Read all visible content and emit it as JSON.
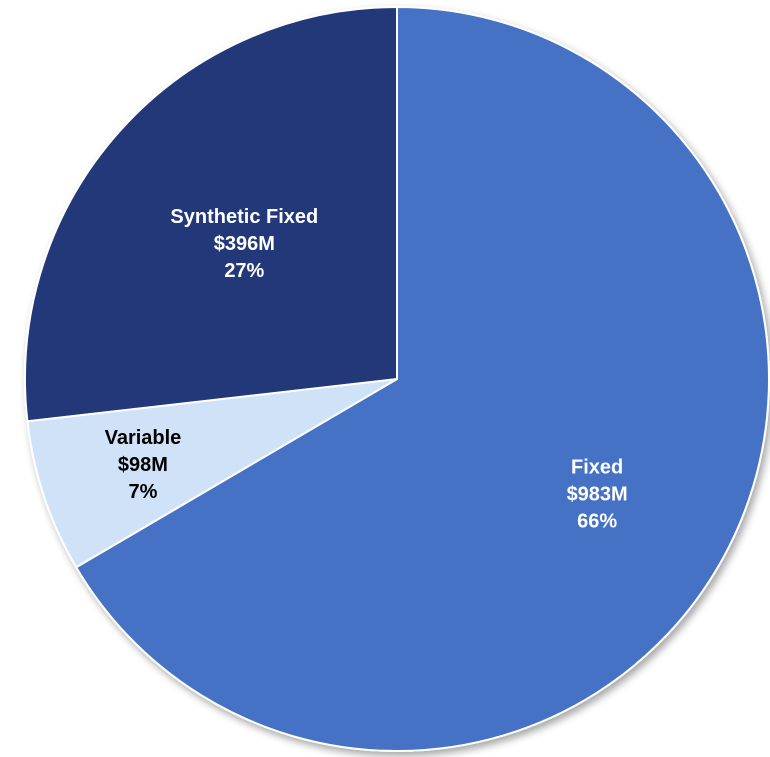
{
  "chart_data": {
    "type": "pie",
    "title": "",
    "slices": [
      {
        "label": "Fixed",
        "value_label": "$983M",
        "percent_label": "66%",
        "value": 983,
        "color": "#4472C4",
        "text_color": "#FFFFFF"
      },
      {
        "label": "Variable",
        "value_label": "$98M",
        "percent_label": "7%",
        "value": 98,
        "color": "#D0E2F8",
        "text_color": "#000000"
      },
      {
        "label": "Synthetic Fixed",
        "value_label": "$396M",
        "percent_label": "27%",
        "value": 396,
        "color": "#203779",
        "text_color": "#FFFFFF"
      }
    ],
    "start_angle_deg": 0,
    "direction": "clockwise",
    "legend": "none",
    "slice_border_color": "#FFFFFF"
  }
}
